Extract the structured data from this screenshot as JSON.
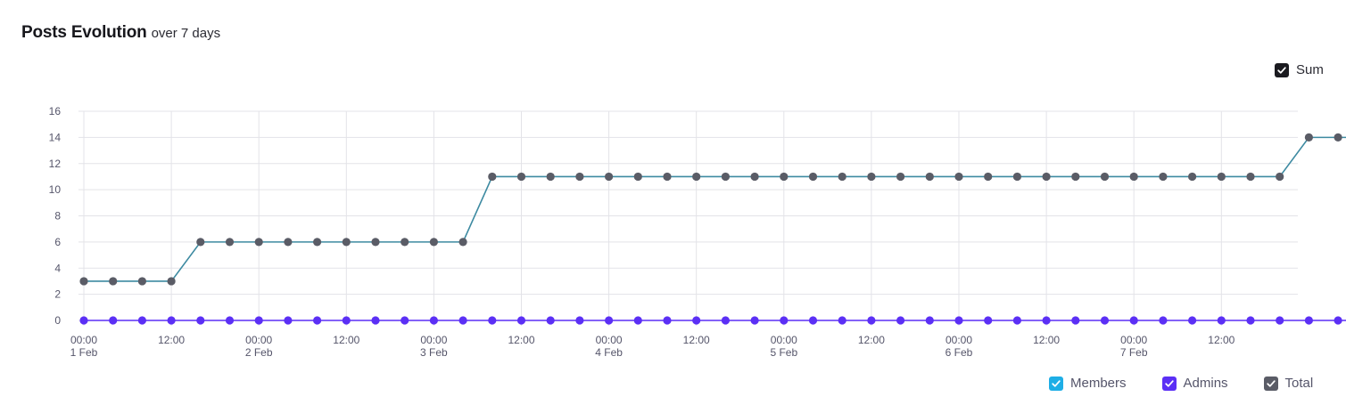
{
  "header": {
    "title": "Posts Evolution",
    "subtitle": "over 7 days"
  },
  "sum_toggle": {
    "label": "Sum",
    "checked": true,
    "color": "#1b1b20"
  },
  "legend": {
    "items": [
      {
        "label": "Members",
        "checked": true,
        "color": "#1eaee6"
      },
      {
        "label": "Admins",
        "checked": true,
        "color": "#5b2ff5"
      },
      {
        "label": "Total",
        "checked": true,
        "color": "#5a5c66"
      }
    ]
  },
  "chart_data": {
    "type": "line",
    "title": "Posts Evolution",
    "subtitle": "over 7 days",
    "ylim": [
      0,
      16
    ],
    "yticks": [
      "0",
      "2",
      "4",
      "6",
      "8",
      "10",
      "12",
      "14",
      "16"
    ],
    "x_labels": [
      {
        "time": "00:00",
        "date": "1 Feb"
      },
      {
        "time": "12:00",
        "date": ""
      },
      {
        "time": "00:00",
        "date": "2 Feb"
      },
      {
        "time": "12:00",
        "date": ""
      },
      {
        "time": "00:00",
        "date": "3 Feb"
      },
      {
        "time": "12:00",
        "date": ""
      },
      {
        "time": "00:00",
        "date": "4 Feb"
      },
      {
        "time": "12:00",
        "date": ""
      },
      {
        "time": "00:00",
        "date": "5 Feb"
      },
      {
        "time": "12:00",
        "date": ""
      },
      {
        "time": "00:00",
        "date": "6 Feb"
      },
      {
        "time": "12:00",
        "date": ""
      },
      {
        "time": "00:00",
        "date": "7 Feb"
      },
      {
        "time": "12:00",
        "date": ""
      }
    ],
    "x_step_hours": 4,
    "grid": true,
    "legend_position": "bottom-right",
    "series": [
      {
        "name": "Total",
        "line_color": "#3d8aa1",
        "point_color": "#5a5c66",
        "values": [
          3,
          3,
          3,
          3,
          6,
          6,
          6,
          6,
          6,
          6,
          6,
          6,
          6,
          6,
          11,
          11,
          11,
          11,
          11,
          11,
          11,
          11,
          11,
          11,
          11,
          11,
          11,
          11,
          11,
          11,
          11,
          11,
          11,
          11,
          11,
          11,
          11,
          11,
          11,
          11,
          11,
          11,
          14,
          14,
          14
        ]
      },
      {
        "name": "Admins",
        "line_color": "#5b2ff5",
        "point_color": "#5b2ff5",
        "values": [
          0,
          0,
          0,
          0,
          0,
          0,
          0,
          0,
          0,
          0,
          0,
          0,
          0,
          0,
          0,
          0,
          0,
          0,
          0,
          0,
          0,
          0,
          0,
          0,
          0,
          0,
          0,
          0,
          0,
          0,
          0,
          0,
          0,
          0,
          0,
          0,
          0,
          0,
          0,
          0,
          0,
          0,
          0,
          0,
          0
        ]
      }
    ]
  }
}
